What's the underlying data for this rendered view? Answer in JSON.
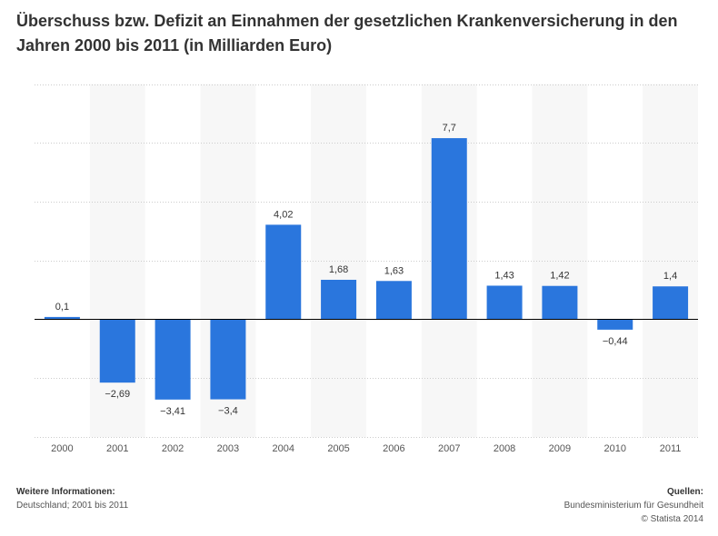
{
  "chart_data": {
    "type": "bar",
    "title": "Überschuss bzw. Defizit an Einnahmen der gesetzlichen Krankenversicherung in den Jahren 2000 bis 2011 (in Milliarden Euro)",
    "categories": [
      "2000",
      "2001",
      "2002",
      "2003",
      "2004",
      "2005",
      "2006",
      "2007",
      "2008",
      "2009",
      "2010",
      "2011"
    ],
    "values": [
      0.1,
      -2.69,
      -3.41,
      -3.4,
      4.02,
      1.68,
      1.63,
      7.7,
      1.43,
      1.42,
      -0.44,
      1.4
    ],
    "value_labels": [
      "0,1",
      "−2,69",
      "−3,41",
      "−3,4",
      "4,02",
      "1,68",
      "1,63",
      "7,7",
      "1,43",
      "1,42",
      "−0,44",
      "1,4"
    ],
    "xlabel": "",
    "ylabel": "",
    "ylim": [
      -5,
      10
    ],
    "grid": true,
    "legend": "none",
    "bar_color": "#2a76dd",
    "band_color": "#f7f7f7",
    "grid_color": "#cccccc",
    "axis_color": "#000000"
  },
  "footer": {
    "left_heading": "Weitere Informationen:",
    "left_text": "Deutschland; 2001 bis 2011",
    "right_heading": "Quellen:",
    "right_source": "Bundesministerium für Gesundheit",
    "right_copyright": "© Statista 2014"
  }
}
